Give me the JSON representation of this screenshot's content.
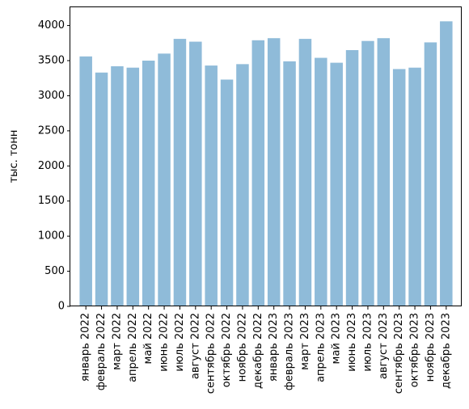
{
  "chart_data": {
    "type": "bar",
    "categories": [
      "январь 2022",
      "февраль 2022",
      "март 2022",
      "апрель 2022",
      "май 2022",
      "июнь 2022",
      "июль 2022",
      "август 2022",
      "сентябрь 2022",
      "октябрь 2022",
      "ноябрь 2022",
      "декабрь 2022",
      "январь 2023",
      "февраль 2023",
      "март 2023",
      "апрель 2023",
      "май 2023",
      "июнь 2023",
      "июль 2023",
      "август 2023",
      "сентябрь 2023",
      "октябрь 2023",
      "ноябрь 2023",
      "декабрь 2023"
    ],
    "values": [
      3560,
      3330,
      3420,
      3400,
      3500,
      3600,
      3810,
      3770,
      3430,
      3230,
      3450,
      3790,
      3820,
      3490,
      3810,
      3540,
      3470,
      3650,
      3780,
      3820,
      3380,
      3400,
      3760,
      4060
    ],
    "ylabel": "тыс. тонн",
    "ylim": [
      0,
      4260
    ],
    "yticks": [
      0,
      500,
      1000,
      1500,
      2000,
      2500,
      3000,
      3500,
      4000
    ],
    "bar_color": "#1f77b4",
    "grid": false,
    "legend": "none"
  }
}
